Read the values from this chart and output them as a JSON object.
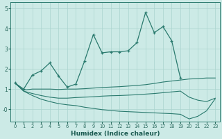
{
  "xlabel": "Humidex (Indice chaleur)",
  "color": "#2a7a6e",
  "bg_color": "#cceae6",
  "grid_color": "#aad4ce",
  "ylim": [
    -0.6,
    5.3
  ],
  "xlim": [
    -0.5,
    23.5
  ],
  "line1_x": [
    0,
    1,
    2,
    3,
    4,
    5,
    6,
    7,
    8,
    9,
    10,
    11,
    12,
    13,
    14,
    15,
    16,
    17,
    18,
    19
  ],
  "line1_y": [
    1.3,
    1.0,
    1.7,
    1.9,
    2.3,
    1.65,
    1.1,
    1.25,
    2.4,
    3.7,
    2.8,
    2.85,
    2.85,
    2.9,
    3.3,
    4.8,
    3.8,
    4.1,
    3.4,
    1.55
  ],
  "line2_x": [
    0,
    1,
    2,
    3,
    4,
    5,
    6,
    7,
    8,
    9,
    10,
    11,
    12,
    13,
    14,
    15,
    16,
    17,
    18,
    19,
    20,
    21,
    22,
    23
  ],
  "line2_y": [
    1.3,
    0.95,
    1.0,
    1.0,
    1.0,
    0.98,
    1.0,
    1.0,
    1.02,
    1.05,
    1.08,
    1.1,
    1.12,
    1.15,
    1.18,
    1.22,
    1.28,
    1.35,
    1.4,
    1.45,
    1.5,
    1.52,
    1.55,
    1.55
  ],
  "line3_x": [
    0,
    1,
    2,
    3,
    4,
    5,
    6,
    7,
    8,
    9,
    10,
    11,
    12,
    13,
    14,
    15,
    16,
    17,
    18,
    19,
    20,
    21,
    22,
    23
  ],
  "line3_y": [
    1.3,
    0.9,
    0.78,
    0.68,
    0.6,
    0.55,
    0.55,
    0.58,
    0.6,
    0.62,
    0.65,
    0.67,
    0.68,
    0.7,
    0.72,
    0.75,
    0.78,
    0.82,
    0.86,
    0.9,
    0.6,
    0.45,
    0.38,
    0.55
  ],
  "line4_x": [
    0,
    1,
    2,
    3,
    4,
    5,
    6,
    7,
    8,
    9,
    10,
    11,
    12,
    13,
    14,
    15,
    16,
    17,
    18,
    19,
    20,
    21,
    22,
    23
  ],
  "line4_y": [
    1.3,
    0.9,
    0.68,
    0.5,
    0.38,
    0.28,
    0.22,
    0.18,
    0.1,
    0.04,
    -0.02,
    -0.06,
    -0.1,
    -0.12,
    -0.14,
    -0.16,
    -0.18,
    -0.2,
    -0.22,
    -0.25,
    -0.48,
    -0.35,
    -0.08,
    0.52
  ]
}
